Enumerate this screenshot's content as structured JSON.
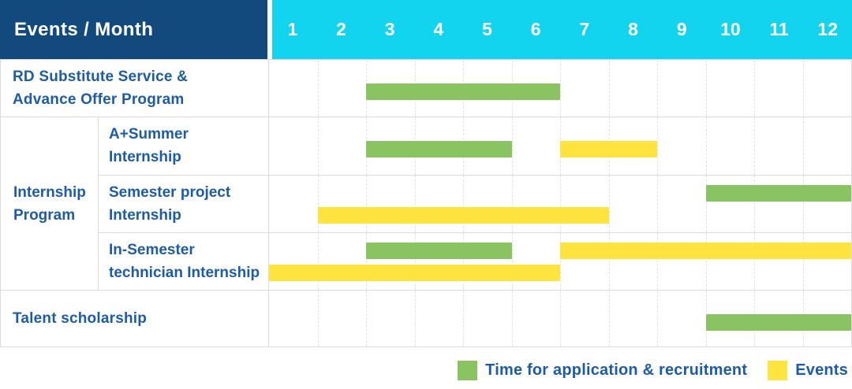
{
  "colors": {
    "navy": "#124A7D",
    "cyan": "#12D4EF",
    "green": "#8AC462",
    "yellow": "#FFE33E",
    "labelblue": "#1D5CA5",
    "grid": "#DBDBDB",
    "gridlight": "#E2E2E2"
  },
  "header": {
    "title": "Events / Month",
    "months": [
      "1",
      "2",
      "3",
      "4",
      "5",
      "6",
      "7",
      "8",
      "9",
      "10",
      "11",
      "12"
    ]
  },
  "chart_data": {
    "type": "bar",
    "variant": "gantt",
    "x_unit": "month",
    "x_range": [
      1,
      12
    ],
    "grid": true,
    "legend_position": "bottom-right",
    "legend": [
      {
        "label": "Time for application & recruitment",
        "color_key": "green",
        "bar_type": "application"
      },
      {
        "label": "Events",
        "color_key": "yellow",
        "bar_type": "event"
      }
    ],
    "group_label_lines": [
      "Internship",
      "Program"
    ],
    "rows": [
      {
        "label_lines": [
          "RD Substitute Service &",
          "Advance Offer Program"
        ],
        "group": null,
        "bars": [
          {
            "type": "application",
            "start": 3,
            "end": 6,
            "line": "mid"
          }
        ]
      },
      {
        "label_lines": [
          "A+Summer",
          "Internship"
        ],
        "group": "Internship Program",
        "bars": [
          {
            "type": "application",
            "start": 3,
            "end": 5,
            "line": "mid"
          },
          {
            "type": "event",
            "start": 7,
            "end": 8,
            "line": "mid"
          }
        ]
      },
      {
        "label_lines": [
          "Semester project",
          "Internship"
        ],
        "group": "Internship Program",
        "bars": [
          {
            "type": "application",
            "start": 10,
            "end": 12,
            "line": "top"
          },
          {
            "type": "event",
            "start": 2,
            "end": 7,
            "line": "bottom"
          }
        ]
      },
      {
        "label_lines": [
          "In-Semester",
          "technician Internship"
        ],
        "group": "Internship Program",
        "bars": [
          {
            "type": "application",
            "start": 3,
            "end": 5,
            "line": "top"
          },
          {
            "type": "event",
            "start": 7,
            "end": 12,
            "line": "top"
          },
          {
            "type": "event",
            "start": 1,
            "end": 6,
            "line": "bottom"
          }
        ]
      },
      {
        "label_lines": [
          "Talent scholarship"
        ],
        "group": null,
        "bars": [
          {
            "type": "application",
            "start": 10,
            "end": 12,
            "line": "mid"
          }
        ]
      }
    ]
  }
}
